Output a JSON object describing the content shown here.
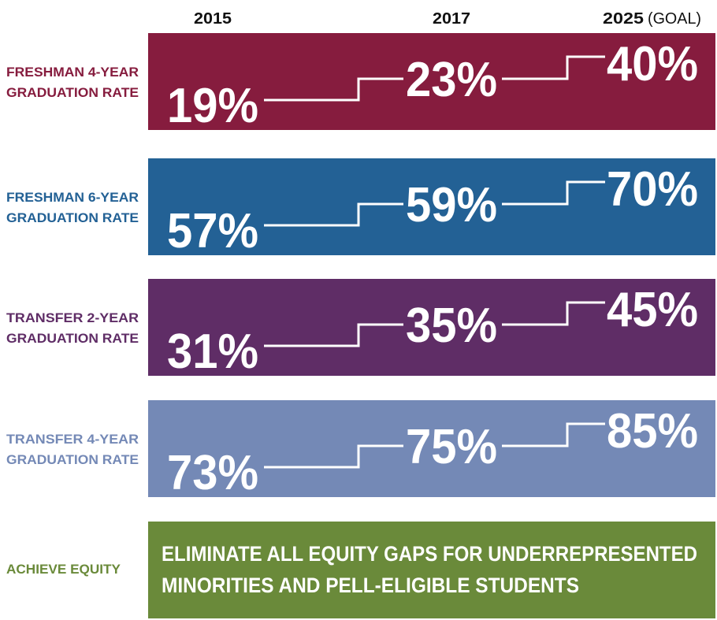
{
  "header": {
    "columns": [
      "2015",
      "2017",
      "2025"
    ],
    "goal_note": "(GOAL)"
  },
  "rows": [
    {
      "label": [
        "FRESHMAN 4-YEAR",
        "GRADUATION RATE"
      ],
      "values": [
        "19%",
        "23%",
        "40%"
      ],
      "color": "#861c3e"
    },
    {
      "label": [
        "FRESHMAN 6-YEAR",
        "GRADUATION RATE"
      ],
      "values": [
        "57%",
        "59%",
        "70%"
      ],
      "color": "#236195"
    },
    {
      "label": [
        "TRANSFER 2-YEAR",
        "GRADUATION RATE"
      ],
      "values": [
        "31%",
        "35%",
        "45%"
      ],
      "color": "#5f2d66"
    },
    {
      "label": [
        "TRANSFER 4-YEAR",
        "GRADUATION RATE"
      ],
      "values": [
        "73%",
        "75%",
        "85%"
      ],
      "color": "#7489b6"
    }
  ],
  "equity": {
    "label": "ACHIEVE EQUITY",
    "text": [
      "ELIMINATE ALL EQUITY GAPS FOR UNDERREPRESENTED",
      "MINORITIES AND PELL-ELIGIBLE STUDENTS"
    ],
    "color": "#6a8a3a"
  }
}
